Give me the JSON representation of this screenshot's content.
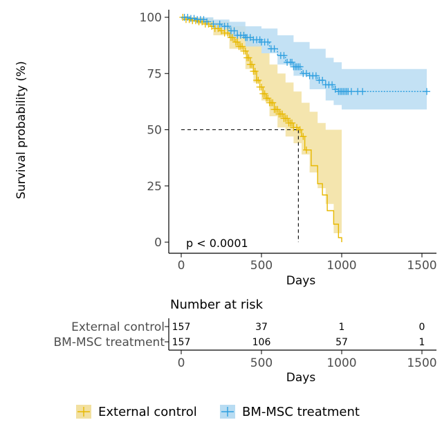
{
  "chart_data": {
    "type": "kaplan-meier",
    "xlabel": "Days",
    "ylabel": "Survival probability (%)",
    "xlim": [
      -60,
      1560
    ],
    "ylim": [
      0,
      100
    ],
    "xticks": [
      0,
      500,
      1000,
      1500
    ],
    "yticks": [
      0,
      25,
      50,
      75,
      100
    ],
    "grid": false,
    "pvalue_text": "p < 0.0001",
    "median_line": {
      "x": 730,
      "y": 50
    },
    "series": [
      {
        "name": "External control",
        "color": "#E7B800",
        "ci_color": "#f2e0a0",
        "linestyle": "solid",
        "steps": [
          [
            0,
            100
          ],
          [
            30,
            99
          ],
          [
            70,
            98.5
          ],
          [
            110,
            98
          ],
          [
            150,
            97
          ],
          [
            180,
            96
          ],
          [
            210,
            95
          ],
          [
            240,
            94
          ],
          [
            270,
            93
          ],
          [
            300,
            91
          ],
          [
            330,
            89
          ],
          [
            360,
            87
          ],
          [
            390,
            85
          ],
          [
            410,
            82
          ],
          [
            430,
            79
          ],
          [
            450,
            76
          ],
          [
            470,
            72
          ],
          [
            490,
            69
          ],
          [
            510,
            66
          ],
          [
            530,
            64
          ],
          [
            550,
            62
          ],
          [
            580,
            59
          ],
          [
            610,
            57
          ],
          [
            640,
            55
          ],
          [
            670,
            53
          ],
          [
            700,
            51
          ],
          [
            730,
            50
          ],
          [
            750,
            47
          ],
          [
            770,
            41
          ],
          [
            810,
            34
          ],
          [
            850,
            26
          ],
          [
            880,
            21
          ],
          [
            910,
            14
          ],
          [
            950,
            8
          ],
          [
            980,
            2
          ],
          [
            1000,
            0
          ]
        ],
        "ci_upper": [
          [
            0,
            100
          ],
          [
            100,
            99.5
          ],
          [
            200,
            98
          ],
          [
            300,
            96
          ],
          [
            400,
            92
          ],
          [
            450,
            88
          ],
          [
            500,
            84
          ],
          [
            550,
            79
          ],
          [
            600,
            75
          ],
          [
            650,
            71
          ],
          [
            700,
            67
          ],
          [
            750,
            62
          ],
          [
            800,
            58
          ],
          [
            850,
            53
          ],
          [
            900,
            50
          ],
          [
            1000,
            50
          ]
        ],
        "ci_lower": [
          [
            0,
            99
          ],
          [
            100,
            97
          ],
          [
            200,
            92
          ],
          [
            300,
            86
          ],
          [
            400,
            77
          ],
          [
            450,
            71
          ],
          [
            500,
            63
          ],
          [
            550,
            56
          ],
          [
            600,
            51
          ],
          [
            650,
            47
          ],
          [
            700,
            44
          ],
          [
            750,
            39
          ],
          [
            800,
            31
          ],
          [
            850,
            24
          ],
          [
            900,
            17
          ],
          [
            950,
            4
          ],
          [
            1000,
            0
          ]
        ],
        "censor_x": [
          10,
          30,
          50,
          70,
          90,
          110,
          130,
          150,
          170,
          190,
          210,
          230,
          250,
          270,
          290,
          310,
          320,
          340,
          350,
          360,
          370,
          380,
          390,
          400,
          410,
          420,
          430,
          440,
          450,
          460,
          470,
          480,
          490,
          500,
          510,
          520,
          530,
          540,
          550,
          560,
          570,
          580,
          590,
          600,
          610,
          620,
          630,
          640,
          650,
          660,
          670,
          680,
          690,
          700,
          720,
          740,
          760,
          780
        ]
      },
      {
        "name": "BM-MSC treatment",
        "color": "#2E9FDF",
        "ci_color": "#b8dcf2",
        "linestyle": "dotted",
        "steps": [
          [
            0,
            100
          ],
          [
            50,
            99.5
          ],
          [
            100,
            99
          ],
          [
            150,
            98
          ],
          [
            200,
            97
          ],
          [
            250,
            96
          ],
          [
            300,
            94
          ],
          [
            350,
            92
          ],
          [
            400,
            91
          ],
          [
            450,
            90
          ],
          [
            500,
            89
          ],
          [
            550,
            86
          ],
          [
            600,
            83
          ],
          [
            650,
            80
          ],
          [
            700,
            78
          ],
          [
            750,
            75
          ],
          [
            800,
            74
          ],
          [
            850,
            72
          ],
          [
            900,
            70
          ],
          [
            950,
            68
          ],
          [
            980,
            67
          ],
          [
            1530,
            67
          ]
        ],
        "ci_upper": [
          [
            0,
            100
          ],
          [
            100,
            100
          ],
          [
            200,
            99
          ],
          [
            300,
            98
          ],
          [
            400,
            96
          ],
          [
            500,
            95
          ],
          [
            600,
            92
          ],
          [
            700,
            89
          ],
          [
            800,
            86
          ],
          [
            900,
            82
          ],
          [
            950,
            80
          ],
          [
            1000,
            77
          ],
          [
            1530,
            77
          ]
        ],
        "ci_lower": [
          [
            0,
            99
          ],
          [
            100,
            98
          ],
          [
            200,
            95
          ],
          [
            300,
            91
          ],
          [
            400,
            87
          ],
          [
            500,
            84
          ],
          [
            600,
            79
          ],
          [
            700,
            74
          ],
          [
            800,
            68
          ],
          [
            900,
            63
          ],
          [
            950,
            61
          ],
          [
            1000,
            59
          ],
          [
            1530,
            59
          ]
        ],
        "censor_x": [
          20,
          40,
          60,
          80,
          100,
          120,
          140,
          160,
          200,
          240,
          270,
          290,
          310,
          330,
          350,
          370,
          390,
          400,
          410,
          430,
          450,
          470,
          490,
          500,
          520,
          540,
          560,
          580,
          620,
          640,
          660,
          680,
          690,
          700,
          710,
          720,
          730,
          740,
          760,
          780,
          800,
          820,
          840,
          860,
          880,
          900,
          920,
          940,
          960,
          980,
          990,
          1000,
          1010,
          1020,
          1030,
          1040,
          1060,
          1100,
          1130,
          1530
        ]
      }
    ]
  },
  "risk_table": {
    "title": "Number at risk",
    "xlabel": "Days",
    "rows": [
      {
        "label": "External control",
        "color": "#E7B800",
        "values": [
          "157",
          "37",
          "1",
          "0"
        ]
      },
      {
        "label": "BM-MSC treatment",
        "color": "#2E9FDF",
        "values": [
          "157",
          "106",
          "57",
          "1"
        ]
      }
    ],
    "xticks": [
      "0",
      "500",
      "1000",
      "1500"
    ]
  },
  "legend": {
    "items": [
      {
        "label": "External control",
        "color": "#E7B800"
      },
      {
        "label": "BM-MSC treatment",
        "color": "#2E9FDF"
      }
    ]
  }
}
